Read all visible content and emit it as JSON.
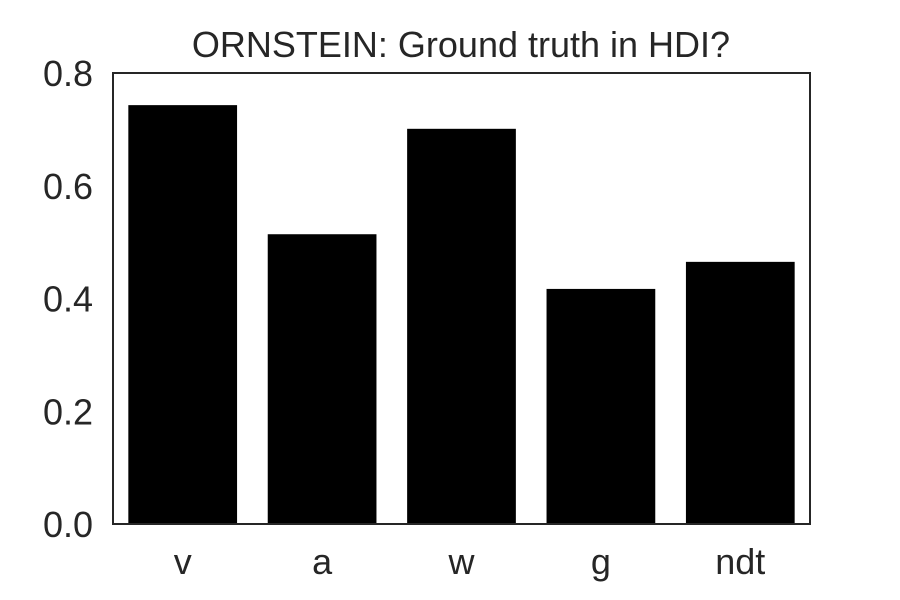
{
  "chart_data": {
    "type": "bar",
    "title": "ORNSTEIN: Ground truth in HDI?",
    "xlabel": "",
    "ylabel": "",
    "categories": [
      "v",
      "a",
      "w",
      "g",
      "ndt"
    ],
    "values": [
      0.743,
      0.514,
      0.701,
      0.417,
      0.465
    ],
    "ylim": [
      0.0,
      0.8
    ],
    "yticks": [
      "0.0",
      "0.2",
      "0.4",
      "0.6",
      "0.8"
    ],
    "bar_color": "#000000",
    "grid": false,
    "legend": "none"
  }
}
